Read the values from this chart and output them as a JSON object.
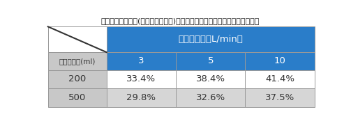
{
  "title": "バッグバルブ換気(リザーバーなし)時の酸素流量と換気量と酸素濃度の関係",
  "header_label": "酸素添加量（L/min）",
  "row_header_label": "一回換気量(ml)",
  "col_headers": [
    "3",
    "5",
    "10"
  ],
  "row_labels": [
    "200",
    "500"
  ],
  "data": [
    [
      "33.4%",
      "38.4%",
      "41.4%"
    ],
    [
      "29.8%",
      "32.6%",
      "37.5%"
    ]
  ],
  "header_bg": "#2A7DC9",
  "header_fg": "#ffffff",
  "row_label_bg": "#c8c8c8",
  "row_label_fg": "#333333",
  "data_bg_0": "#ffffff",
  "data_bg_1": "#d6d6d6",
  "cell_fg": "#333333",
  "border_color": "#999999",
  "title_fontsize": 8.0,
  "header_fontsize": 9.5,
  "sub_header_fontsize": 7.5,
  "cell_fontsize": 9.5,
  "background_color": "#ffffff"
}
